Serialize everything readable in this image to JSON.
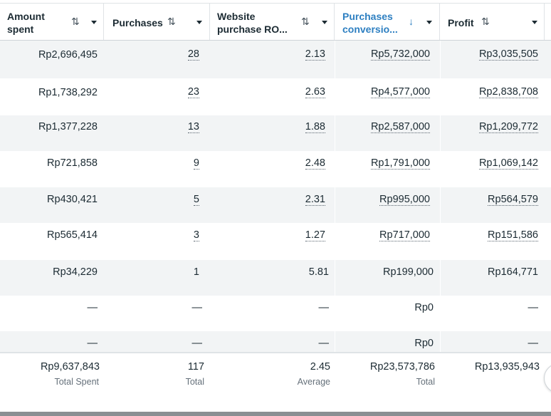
{
  "columns": [
    {
      "label_line1": "Amount",
      "label_line2": "spent",
      "sort_icon": "sort-up-down-icon",
      "sort_glyph": "⇅"
    },
    {
      "label_line1": "Purchases",
      "label_line2": "",
      "sort_icon": "sort-up-down-icon",
      "sort_glyph": "⇅"
    },
    {
      "label_line1": "Website",
      "label_line2": "purchase RO...",
      "sort_icon": "sort-up-down-icon",
      "sort_glyph": "⇅"
    },
    {
      "label_line1": "Purchases",
      "label_line2": "conversio...",
      "sort_icon": "sort-descending-arrow-icon",
      "sort_glyph": "↓",
      "active": true
    },
    {
      "label_line1": "Profit",
      "label_line2": "",
      "sort_icon": "sort-up-down-icon",
      "sort_glyph": "⇅"
    }
  ],
  "rows": [
    [
      "Rp2,696,495",
      "28",
      "2.13",
      "Rp5,732,000",
      "Rp3,035,505"
    ],
    [
      "Rp1,738,292",
      "23",
      "2.63",
      "Rp4,577,000",
      "Rp2,838,708"
    ],
    [
      "Rp1,377,228",
      "13",
      "1.88",
      "Rp2,587,000",
      "Rp1,209,772"
    ],
    [
      "Rp721,858",
      "9",
      "2.48",
      "Rp1,791,000",
      "Rp1,069,142"
    ],
    [
      "Rp430,421",
      "5",
      "2.31",
      "Rp995,000",
      "Rp564,579"
    ],
    [
      "Rp565,414",
      "3",
      "1.27",
      "Rp717,000",
      "Rp151,586"
    ],
    [
      "Rp34,229",
      "1",
      "5.81",
      "Rp199,000",
      "Rp164,771"
    ],
    [
      "—",
      "—",
      "—",
      "Rp0",
      "—"
    ],
    [
      "—",
      "—",
      "—",
      "Rp0",
      "—"
    ]
  ],
  "totals": [
    {
      "value": "Rp9,637,843",
      "label": "Total Spent"
    },
    {
      "value": "117",
      "label": "Total"
    },
    {
      "value": "2.45",
      "label": "Average"
    },
    {
      "value": "Rp23,573,786",
      "label": "Total"
    },
    {
      "value": "Rp13,935,943",
      "label": ""
    }
  ],
  "colors": {
    "accent": "#2d7fc1",
    "row_shade": "#f2f4f5",
    "text": "#1c2b33",
    "muted": "#65707a"
  }
}
